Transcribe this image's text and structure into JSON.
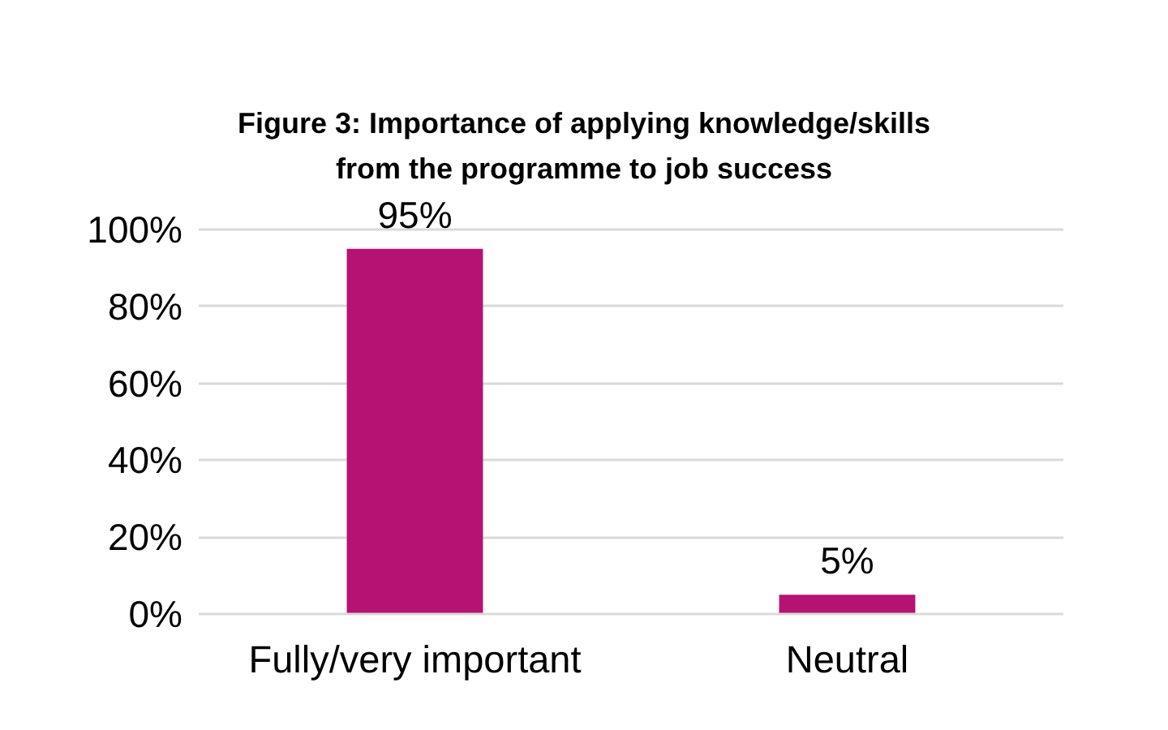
{
  "chart_data": {
    "type": "bar",
    "title": "Figure 3: Importance of applying knowledge/skills from the programme to job success",
    "categories": [
      "Fully/very important",
      "Neutral"
    ],
    "values": [
      95,
      5
    ],
    "value_labels": [
      "95%",
      "5%"
    ],
    "color": "#b51274",
    "ylim": [
      0,
      100
    ],
    "yticks": [
      {
        "value": 0,
        "label": "0%"
      },
      {
        "value": 20,
        "label": "20%"
      },
      {
        "value": 40,
        "label": "40%"
      },
      {
        "value": 60,
        "label": "60%"
      },
      {
        "value": 80,
        "label": "80%"
      },
      {
        "value": 100,
        "label": "100%"
      }
    ],
    "grid": "y"
  }
}
